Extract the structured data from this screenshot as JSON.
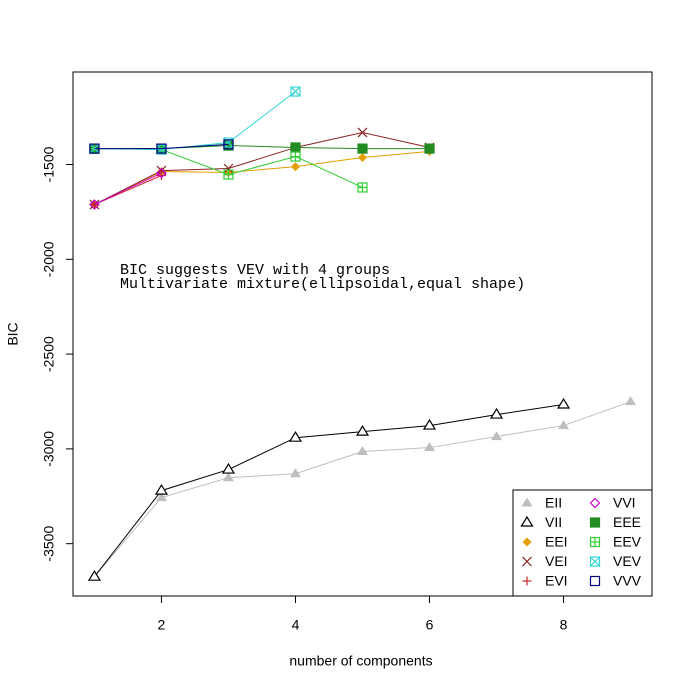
{
  "chart_data": {
    "type": "line",
    "xlabel": "number of components",
    "ylabel": "BIC",
    "annotations": [
      "BIC suggests VEV with 4 groups",
      "Multivariate mixture(ellipsoidal,equal shape)"
    ],
    "x": [
      1,
      2,
      3,
      4,
      5,
      6,
      7,
      8,
      9
    ],
    "xlim": [
      0.68,
      9.32
    ],
    "xticks": [
      2,
      4,
      6,
      8
    ],
    "ylim": [
      -3776,
      -1012
    ],
    "yticks": [
      -3500,
      -3000,
      -2500,
      -2000,
      -1500
    ],
    "legend_position": "bottom-right",
    "series": [
      {
        "name": "EII",
        "color": "#bebebe",
        "marker": "triangle-filled",
        "values": [
          -3674,
          -3257,
          -3152,
          -3131,
          -3014,
          -2993,
          -2935,
          -2877,
          -2751
        ]
      },
      {
        "name": "VII",
        "color": "#000000",
        "marker": "triangle-open",
        "values": [
          -3674,
          -3220,
          -3109,
          -2941,
          -2909,
          -2877,
          -2819,
          -2766,
          null
        ]
      },
      {
        "name": "EEI",
        "color": "#e69f00",
        "marker": "diamond-filled",
        "values": [
          -1711,
          -1537,
          -1542,
          -1511,
          -1463,
          -1431,
          null,
          null,
          null
        ]
      },
      {
        "name": "VEI",
        "color": "#8b2323",
        "marker": "x",
        "values": [
          -1711,
          -1532,
          -1521,
          -1410,
          -1331,
          -1410,
          null,
          null,
          null
        ]
      },
      {
        "name": "EVI",
        "color": "#cd2626",
        "marker": "plus",
        "values": [
          -1711,
          -1558,
          null,
          null,
          null,
          null,
          null,
          null,
          null
        ]
      },
      {
        "name": "VVI",
        "color": "#cd00cd",
        "marker": "diamond-open",
        "values": [
          -1711,
          -1545,
          null,
          null,
          null,
          null,
          null,
          null,
          null
        ]
      },
      {
        "name": "EEE",
        "color": "#228b22",
        "marker": "square-filled",
        "values": [
          -1416,
          -1416,
          -1400,
          -1410,
          -1416,
          -1416,
          null,
          null,
          null
        ]
      },
      {
        "name": "EEV",
        "color": "#32cd32",
        "marker": "square-plus",
        "values": [
          -1416,
          -1421,
          -1553,
          -1458,
          -1621,
          null,
          null,
          null,
          null
        ]
      },
      {
        "name": "VEV",
        "color": "#33d6d6",
        "marker": "square-x",
        "values": [
          -1416,
          -1421,
          -1384,
          -1115,
          null,
          null,
          null,
          null,
          null
        ]
      },
      {
        "name": "VVV",
        "color": "#000080",
        "marker": "square-open",
        "values": [
          -1416,
          -1416,
          -1394,
          null,
          null,
          null,
          null,
          null,
          null
        ]
      }
    ]
  }
}
